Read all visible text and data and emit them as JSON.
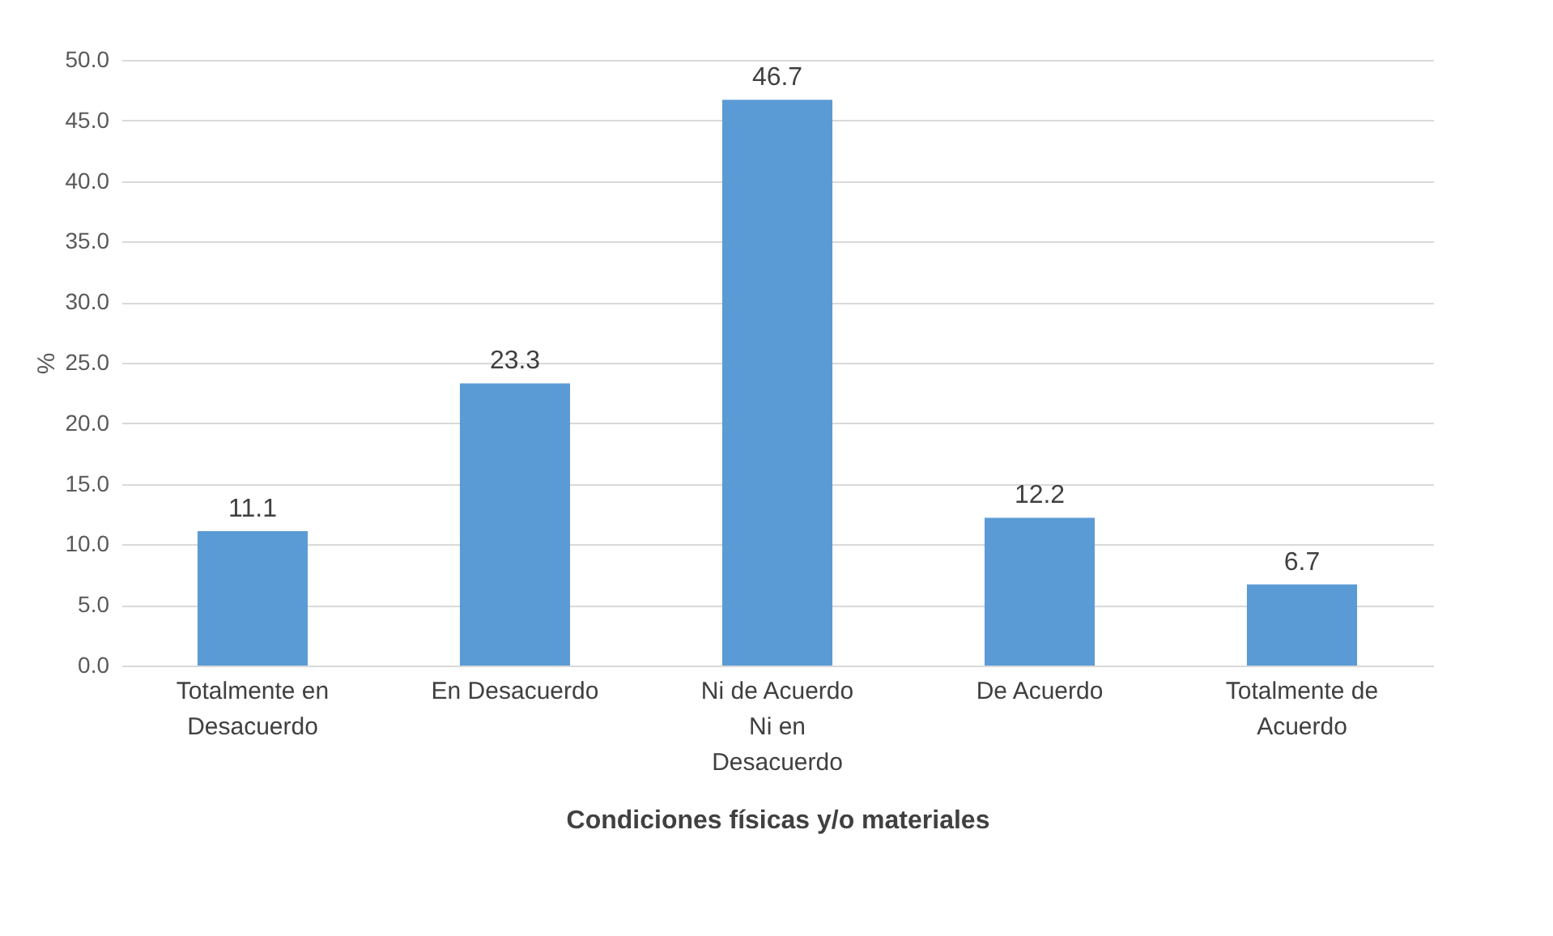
{
  "chart_data": {
    "type": "bar",
    "xlabel": "Condiciones físicas y/o materiales",
    "ylabel": "%",
    "categories": [
      "Totalmente en Desacuerdo",
      "En Desacuerdo",
      "Ni de Acuerdo Ni en Desacuerdo",
      "De Acuerdo",
      "Totalmente de Acuerdo"
    ],
    "values": [
      11.1,
      23.3,
      46.7,
      12.2,
      6.7
    ],
    "color": "#5b9bd5",
    "ylim": [
      0,
      50
    ],
    "yticks": [
      {
        "value": 0,
        "label": "0.0"
      },
      {
        "value": 5,
        "label": "5.0"
      },
      {
        "value": 10,
        "label": "10.0"
      },
      {
        "value": 15,
        "label": "15.0"
      },
      {
        "value": 20,
        "label": "20.0"
      },
      {
        "value": 25,
        "label": "25.0"
      },
      {
        "value": 30,
        "label": "30.0"
      },
      {
        "value": 35,
        "label": "35.0"
      },
      {
        "value": 40,
        "label": "40.0"
      },
      {
        "value": 45,
        "label": "45.0"
      },
      {
        "value": 50,
        "label": "50.0"
      }
    ],
    "grid": true,
    "data_labels": true
  }
}
